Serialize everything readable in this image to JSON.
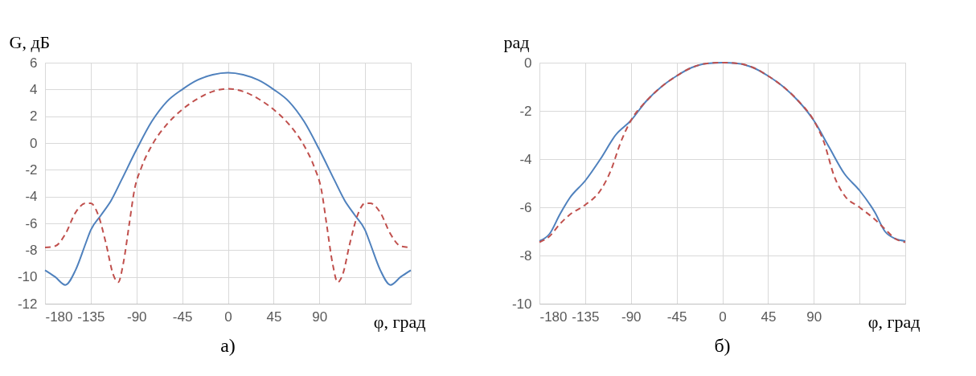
{
  "chart_data": [
    {
      "type": "line",
      "ylabel": "G, дБ",
      "xlabel": "φ, град",
      "annotations": [
        "а)"
      ],
      "xlim": [
        -180,
        180
      ],
      "xticks": [
        -180,
        -135,
        -90,
        -45,
        0,
        45,
        90,
        {
          "value": 135,
          "label": null
        }
      ],
      "ylim": [
        -12,
        6
      ],
      "yticks": [
        -12,
        -10,
        -8,
        -6,
        -4,
        -2,
        0,
        2,
        4,
        6
      ],
      "grid": true,
      "legend": false,
      "series": [
        {
          "color": "#4f81bd",
          "line_style": "solid",
          "x": [
            -180,
            -170,
            -160,
            -150,
            -140,
            -135,
            -125,
            -115,
            -105,
            -90,
            -75,
            -60,
            -45,
            -30,
            -15,
            0,
            15,
            30,
            45,
            60,
            75,
            90,
            105,
            115,
            125,
            135,
            140,
            150,
            160,
            170,
            180
          ],
          "values": [
            -9.5,
            -10.0,
            -10.6,
            -9.5,
            -7.5,
            -6.5,
            -5.4,
            -4.3,
            -2.8,
            -0.5,
            1.6,
            3.1,
            4.0,
            4.7,
            5.1,
            5.25,
            5.1,
            4.7,
            4.0,
            3.1,
            1.6,
            -0.5,
            -2.8,
            -4.3,
            -5.4,
            -6.5,
            -7.5,
            -9.5,
            -10.6,
            -10.0,
            -9.5
          ]
        },
        {
          "color": "#c0504d",
          "line_style": "dashed",
          "x": [
            -180,
            -170,
            -160,
            -150,
            -140,
            -135,
            -128,
            -120,
            -113,
            -108,
            -103,
            -97,
            -92,
            -85,
            -75,
            -60,
            -45,
            -30,
            -15,
            0,
            15,
            30,
            45,
            60,
            75,
            85,
            92,
            97,
            103,
            108,
            113,
            120,
            128,
            135,
            140,
            150,
            160,
            170,
            180
          ],
          "values": [
            -7.8,
            -7.7,
            -6.8,
            -5.2,
            -4.5,
            -4.5,
            -5.3,
            -7.5,
            -9.8,
            -10.4,
            -9.0,
            -6.0,
            -3.5,
            -1.8,
            -0.2,
            1.4,
            2.5,
            3.3,
            3.85,
            4.05,
            3.85,
            3.3,
            2.5,
            1.4,
            -0.2,
            -1.8,
            -3.5,
            -6.0,
            -9.0,
            -10.4,
            -9.8,
            -7.5,
            -5.3,
            -4.5,
            -4.5,
            -5.2,
            -6.8,
            -7.7,
            -7.8
          ]
        }
      ]
    },
    {
      "type": "line",
      "ylabel": "рад",
      "xlabel": "φ, град",
      "annotations": [
        "б)"
      ],
      "xlim": [
        -180,
        180
      ],
      "xticks": [
        -180,
        -135,
        -90,
        -45,
        0,
        45,
        90,
        {
          "value": 135,
          "label": null
        }
      ],
      "ylim": [
        -10,
        0
      ],
      "yticks": [
        -10,
        -8,
        -6,
        -4,
        -2,
        0
      ],
      "grid": true,
      "legend": false,
      "series": [
        {
          "color": "#4f81bd",
          "line_style": "solid",
          "x": [
            -180,
            -170,
            -160,
            -150,
            -135,
            -120,
            -105,
            -90,
            -75,
            -60,
            -45,
            -30,
            -15,
            0,
            15,
            30,
            45,
            60,
            75,
            90,
            105,
            120,
            135,
            150,
            160,
            170,
            180
          ],
          "values": [
            -7.4,
            -7.1,
            -6.3,
            -5.6,
            -4.9,
            -4.0,
            -3.0,
            -2.4,
            -1.6,
            -1.0,
            -0.55,
            -0.2,
            -0.03,
            0,
            -0.03,
            -0.2,
            -0.55,
            -1.0,
            -1.6,
            -2.4,
            -3.5,
            -4.6,
            -5.3,
            -6.2,
            -7.0,
            -7.3,
            -7.4
          ]
        },
        {
          "color": "#c0504d",
          "line_style": "dashed",
          "x": [
            -180,
            -170,
            -160,
            -150,
            -135,
            -120,
            -110,
            -100,
            -90,
            -75,
            -60,
            -45,
            -30,
            -15,
            0,
            15,
            30,
            45,
            60,
            75,
            90,
            100,
            110,
            120,
            135,
            150,
            160,
            170,
            180
          ],
          "values": [
            -7.45,
            -7.2,
            -6.7,
            -6.3,
            -5.9,
            -5.3,
            -4.5,
            -3.3,
            -2.4,
            -1.6,
            -1.0,
            -0.55,
            -0.2,
            -0.03,
            0,
            -0.03,
            -0.2,
            -0.55,
            -1.0,
            -1.6,
            -2.4,
            -3.3,
            -4.7,
            -5.5,
            -6.0,
            -6.5,
            -6.9,
            -7.3,
            -7.45
          ]
        }
      ]
    }
  ]
}
